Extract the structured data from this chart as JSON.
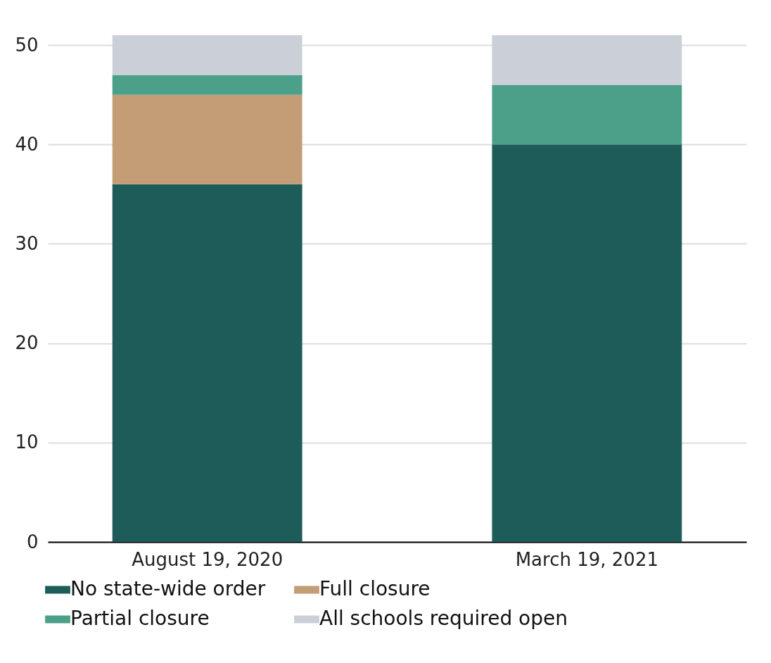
{
  "chart_data": {
    "type": "bar",
    "stacked": true,
    "categories": [
      "August 19, 2020",
      "March 19, 2021"
    ],
    "series": [
      {
        "name": "No state-wide order",
        "color": "#1e5c5a",
        "values": [
          36,
          40
        ]
      },
      {
        "name": "Full closure",
        "color": "#c49c76",
        "values": [
          9,
          0
        ]
      },
      {
        "name": "Partial closure",
        "color": "#4ca08a",
        "values": [
          2,
          6
        ]
      },
      {
        "name": "All schools required open",
        "color": "#cbd0d8",
        "values": [
          4,
          5
        ]
      }
    ],
    "ylim": [
      0,
      51
    ],
    "yticks": [
      0,
      10,
      20,
      30,
      40,
      50
    ],
    "grid": "y",
    "legend": "bottom"
  }
}
